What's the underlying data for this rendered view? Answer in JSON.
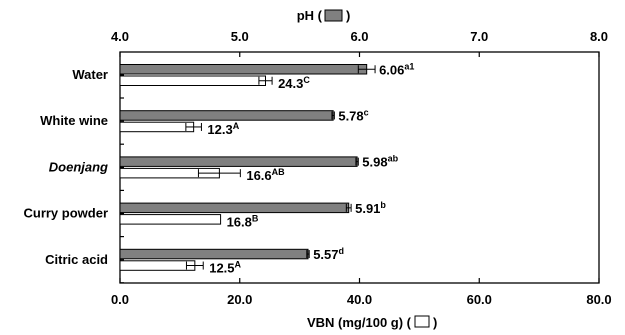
{
  "chart_data": {
    "type": "bar",
    "orientation": "horizontal",
    "categories": [
      "Water",
      "White wine",
      "Doenjang",
      "Curry powder",
      "Citric acid"
    ],
    "italic_categories": [
      "Doenjang"
    ],
    "top_axis": {
      "title": "pH (",
      "title_tail": ")",
      "swatch": "gray",
      "range": [
        4.0,
        8.0
      ],
      "ticks": [
        "4.0",
        "5.0",
        "6.0",
        "7.0",
        "8.0"
      ]
    },
    "bottom_axis": {
      "title": "VBN (mg/100 g) (",
      "title_tail": ")",
      "swatch": "white",
      "range": [
        0.0,
        80.0
      ],
      "ticks": [
        "0.0",
        "20.0",
        "40.0",
        "60.0",
        "80.0"
      ]
    },
    "series": [
      {
        "axis": "top",
        "color": "#808080",
        "values": [
          6.06,
          5.78,
          5.98,
          5.91,
          5.57
        ],
        "errors": [
          0.07,
          0.01,
          0.01,
          0.02,
          0.01
        ],
        "labels": [
          "6.06",
          "5.78",
          "5.98",
          "5.91",
          "5.57"
        ],
        "superscripts": [
          "a1",
          "c",
          "ab",
          "b",
          "d"
        ]
      },
      {
        "axis": "bottom",
        "color": "#ffffff",
        "values": [
          24.3,
          12.3,
          16.6,
          16.8,
          12.5
        ],
        "errors": [
          1.1,
          1.3,
          3.5,
          0.0,
          1.4
        ],
        "labels": [
          "24.3",
          "12.3",
          "16.6",
          "16.8",
          "12.5"
        ],
        "superscripts": [
          "C",
          "A",
          "AB",
          "B",
          "A"
        ]
      }
    ]
  }
}
